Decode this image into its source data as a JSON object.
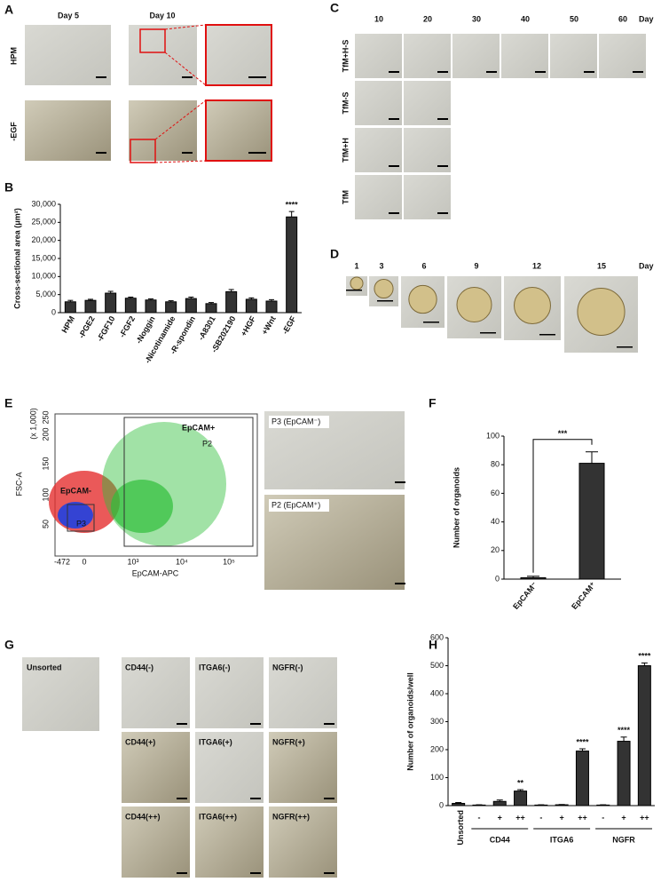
{
  "panels": {
    "A": {
      "letter": "A",
      "columns": [
        "Day 5",
        "Day 10"
      ],
      "rows": [
        "HPM",
        "-EGF"
      ]
    },
    "B": {
      "letter": "B"
    },
    "C": {
      "letter": "C",
      "days": [
        "10",
        "20",
        "30",
        "40",
        "50",
        "60"
      ],
      "day_label": "Day",
      "rows": [
        "TfM+H-S",
        "TfM-S",
        "TfM+H",
        "TfM"
      ]
    },
    "D": {
      "letter": "D",
      "days": [
        "1",
        "3",
        "6",
        "9",
        "12",
        "15"
      ],
      "day_label": "Day"
    },
    "E": {
      "letter": "E",
      "x_label": "EpCAM-APC",
      "y_label": "FSC-A",
      "y_scale": "(x 1,000)",
      "x_tick_labels": [
        "-472",
        "0",
        "10³",
        "10⁴",
        "10⁵"
      ],
      "y_tick_labels": [
        "50",
        "100",
        "150",
        "200",
        "250"
      ],
      "gate_pos": "EpCAM+",
      "gate_pos_name": "P2",
      "gate_neg": "EpCAM-",
      "gate_neg_name": "P3",
      "images": [
        "P3 (EpCAM⁻)",
        "P2 (EpCAM⁺)"
      ]
    },
    "F": {
      "letter": "F"
    },
    "G": {
      "letter": "G",
      "unsorted": "Unsorted",
      "grid": [
        [
          "CD44(-)",
          "ITGA6(-)",
          "NGFR(-)"
        ],
        [
          "CD44(+)",
          "ITGA6(+)",
          "NGFR(+)"
        ],
        [
          "CD44(++)",
          "ITGA6(++)",
          "NGFR(++)"
        ]
      ]
    },
    "H": {
      "letter": "H"
    }
  },
  "chart_data": [
    {
      "type": "bar",
      "y_label": "Cross-sectional area (μm²)",
      "color": "#333333",
      "categories": [
        "HPM",
        "-PGE2",
        "-FGF10",
        "-FGF2",
        "-Noggin",
        "-Nicotinamide",
        "-R-spondin",
        "-A8301",
        "-SB202190",
        "+HGF",
        "+Wnt",
        "-EGF"
      ],
      "values": [
        3000,
        3400,
        5400,
        4000,
        3500,
        3000,
        3900,
        2500,
        5800,
        3700,
        3200,
        26500
      ],
      "errors": [
        400,
        300,
        500,
        300,
        300,
        300,
        400,
        300,
        600,
        400,
        400,
        1500
      ],
      "significance": [
        null,
        null,
        null,
        null,
        null,
        null,
        null,
        null,
        null,
        null,
        null,
        "****"
      ],
      "ylim": [
        0,
        30000
      ],
      "yticks": [
        0,
        {
          "value": 5000,
          "label": "5,000"
        },
        {
          "value": 10000,
          "label": "10,000"
        },
        {
          "value": 15000,
          "label": "15,000"
        },
        {
          "value": 20000,
          "label": "20,000"
        },
        {
          "value": 25000,
          "label": "25,000"
        },
        {
          "value": 30000,
          "label": "30,000"
        }
      ]
    },
    {
      "type": "bar",
      "y_label": "Number of organoids",
      "color": "#333333",
      "categories": [
        "EpCAM⁻",
        "EpCAM⁺"
      ],
      "values": [
        1,
        81
      ],
      "errors": [
        1,
        8
      ],
      "annotation": "***",
      "ylim": [
        0,
        100
      ],
      "yticks": [
        0,
        20,
        40,
        60,
        80,
        100
      ]
    },
    {
      "type": "bar",
      "y_label": "Number of organoids/well",
      "color": "#333333",
      "categories": [
        "Unsorted",
        "-",
        "+",
        "++",
        "-",
        "+",
        "++",
        "-",
        "+",
        "++"
      ],
      "values": [
        8,
        2,
        15,
        52,
        2,
        3,
        195,
        2,
        230,
        500
      ],
      "errors": [
        3,
        1,
        5,
        5,
        1,
        1,
        8,
        1,
        15,
        10
      ],
      "significance": [
        null,
        null,
        null,
        "**",
        null,
        null,
        "****",
        null,
        "****",
        "****"
      ],
      "group_labels": [
        "CD44",
        "ITGA6",
        "NGFR"
      ],
      "ylim": [
        0,
        600
      ],
      "yticks": [
        0,
        100,
        200,
        300,
        400,
        500,
        600
      ]
    }
  ]
}
